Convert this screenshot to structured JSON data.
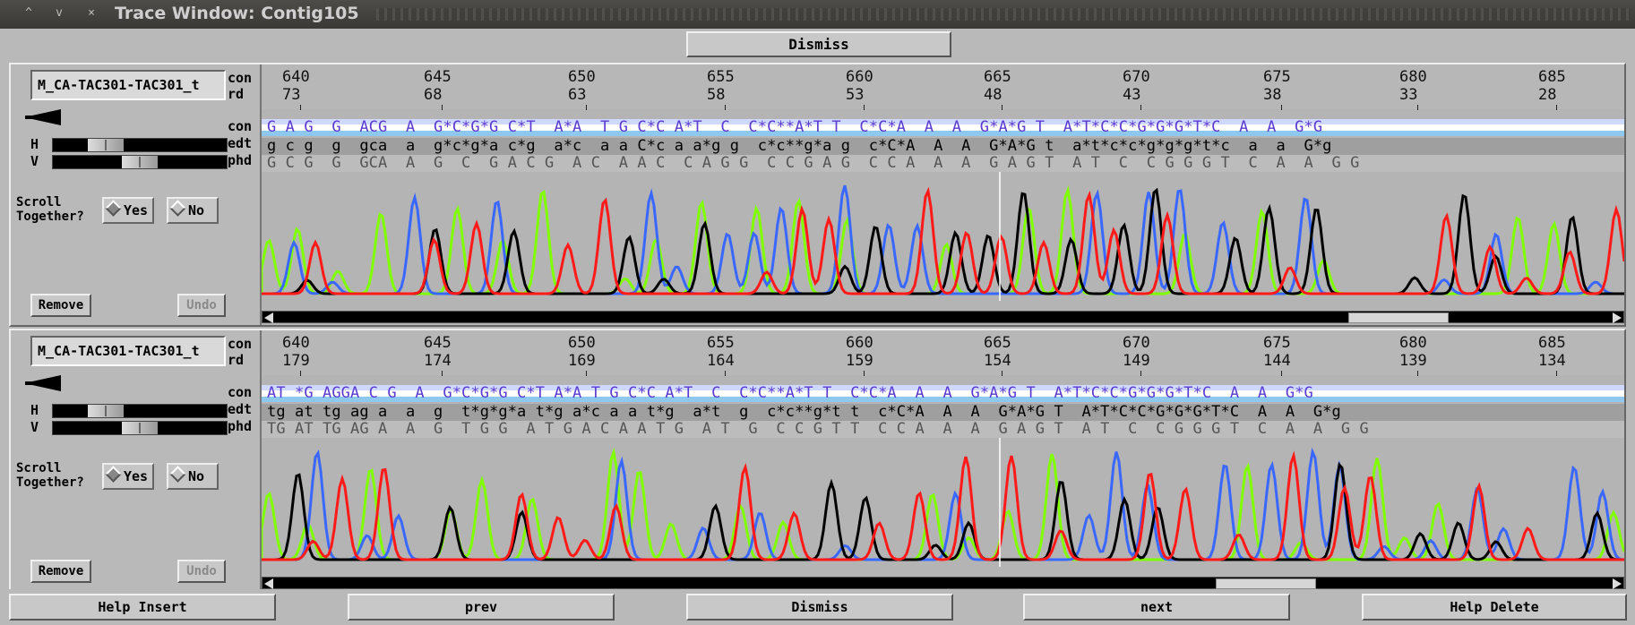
{
  "window": {
    "title": "Trace Window: Contig105",
    "controls": [
      "^",
      "v",
      "×"
    ]
  },
  "top_bar": {
    "dismiss_label": "Dismiss"
  },
  "trace_panels": [
    {
      "sequence_name": "M_CA-TAC301-TAC301_t",
      "row_labels": [
        "con",
        "rd"
      ],
      "track_labels": [
        "con",
        "edt",
        "phd"
      ],
      "h_label": "H",
      "v_label": "V",
      "scroll_together_label": "Scroll\nTogether?",
      "yes_label": "Yes",
      "no_label": "No",
      "scroll_together_value": "Yes",
      "remove_label": "Remove",
      "undo_label": "Undo",
      "h_zoom_fraction": 0.25,
      "v_zoom_fraction": 0.5,
      "consensus_positions": [
        "640",
        "645",
        "650",
        "655",
        "660",
        "665",
        "670",
        "675",
        "680",
        "685"
      ],
      "read_positions": [
        "73",
        "68",
        "63",
        "58",
        "53",
        "48",
        "43",
        "38",
        "33",
        "28"
      ],
      "con_sequence": "G A G  G  ACG  A  G*C*G*G C*T  A*A  T G C*C A*T  C  C*C**A*T T  C*C*A  A  A  G*A*G T  A*T*C*C*G*G*G*T*C  A  A  G*G",
      "edt_sequence": "g c g  g  gca  a  g*c*g*a c*g  a*c  a a C*c a a*g g  c*c**g*a g  c*C*A  A  A  G*A*G t  a*t*c*c*g*g*g*t*c  a  a  G*g",
      "phd_sequence": "G C G  G  GCA  A  G  C  G A C G  A C  A A C  C A G G  C C G A G  C C A  A  A  G A G T  A T  C  C G G G T  C  A  A  G G",
      "scroll_position_fraction": 0.88
    },
    {
      "sequence_name": "M_CA-TAC301-TAC301_t",
      "row_labels": [
        "con",
        "rd"
      ],
      "track_labels": [
        "con",
        "edt",
        "phd"
      ],
      "h_label": "H",
      "v_label": "V",
      "scroll_together_label": "Scroll\nTogether?",
      "yes_label": "Yes",
      "no_label": "No",
      "scroll_together_value": "Yes",
      "remove_label": "Remove",
      "undo_label": "Undo",
      "h_zoom_fraction": 0.25,
      "v_zoom_fraction": 0.5,
      "consensus_positions": [
        "640",
        "645",
        "650",
        "655",
        "660",
        "665",
        "670",
        "675",
        "680",
        "685"
      ],
      "read_positions": [
        "179",
        "174",
        "169",
        "164",
        "159",
        "154",
        "149",
        "144",
        "139",
        "134"
      ],
      "con_sequence": "AT *G AGGA C G  A  G*C*G*G C*T A*A T G C*C A*T  C  C*C**A*T T  C*C*A  A  A  G*A*G T  A*T*C*C*G*G*G*T*C  A  A  G*G",
      "edt_sequence": "tg at tg ag a  a  g  t*g*g*a t*g a*c a a t*g  a*t  g  c*c**g*t t  c*C*A  A  A  G*A*G T  A*T*C*C*G*G*G*T*C  A  A  G*g",
      "phd_sequence": "TG AT TG AG A  A  G  T G G  A T G A C A A T G  A T  G  C C G T T  C C A  A  A  G A G T  A T  C  C G G G T  C  A  A  G G",
      "scroll_position_fraction": 0.78
    }
  ],
  "bottom_bar": {
    "help_insert_label": "Help Insert",
    "prev_label": "prev",
    "dismiss_label": "Dismiss",
    "next_label": "next",
    "help_delete_label": "Help Delete"
  },
  "colors": {
    "trace_A": "#80ff00",
    "trace_C": "#3a68ff",
    "trace_G": "#000000",
    "trace_T": "#ff1a1a",
    "panel_bg": "#b4b4b4",
    "con_track_blue": "#8fc8ef"
  }
}
